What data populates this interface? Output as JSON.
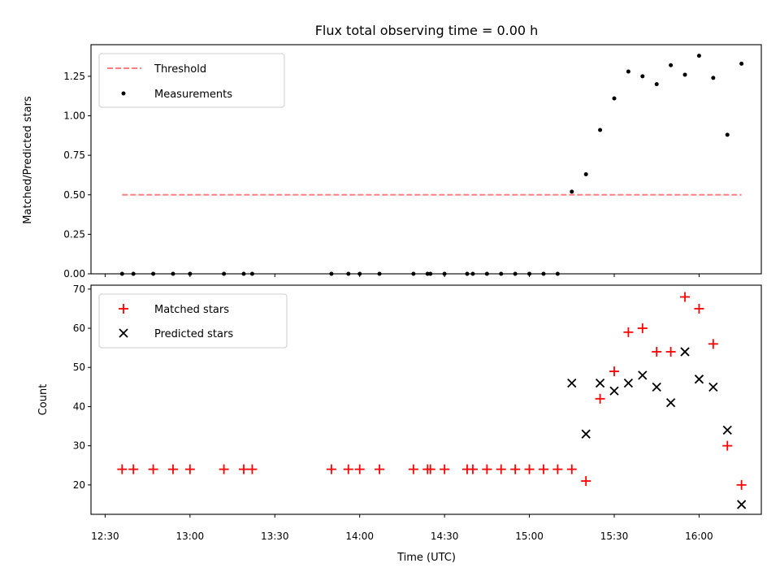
{
  "chart_data": [
    {
      "type": "scatter",
      "title": "Flux total observing time = 0.00 h",
      "ylabel": "Matched/Predicted stars",
      "ylim": [
        0,
        1.45
      ],
      "yticks": [
        "0.00",
        "0.25",
        "0.50",
        "0.75",
        "1.00",
        "1.25"
      ],
      "grid": false,
      "legend_position": "upper-left",
      "threshold": {
        "name": "Threshold",
        "color": "#ff8080",
        "style": "dashed",
        "value": 0.5,
        "x_start": "12:36",
        "x_end": "16:15"
      },
      "series": [
        {
          "name": "Measurements",
          "color": "#000000",
          "marker": "dot",
          "points": [
            [
              "12:36",
              0
            ],
            [
              "12:40",
              0
            ],
            [
              "12:47",
              0
            ],
            [
              "12:54",
              0
            ],
            [
              "13:00",
              0
            ],
            [
              "13:12",
              0
            ],
            [
              "13:19",
              0
            ],
            [
              "13:22",
              0
            ],
            [
              "13:50",
              0
            ],
            [
              "13:56",
              0
            ],
            [
              "14:00",
              0
            ],
            [
              "14:07",
              0
            ],
            [
              "14:19",
              0
            ],
            [
              "14:24",
              0
            ],
            [
              "14:25",
              0
            ],
            [
              "14:30",
              0
            ],
            [
              "14:38",
              0
            ],
            [
              "14:40",
              0
            ],
            [
              "14:45",
              0
            ],
            [
              "14:50",
              0
            ],
            [
              "14:55",
              0
            ],
            [
              "15:00",
              0
            ],
            [
              "15:05",
              0
            ],
            [
              "15:10",
              0
            ],
            [
              "15:15",
              0.52
            ],
            [
              "15:20",
              0.63
            ],
            [
              "15:25",
              0.91
            ],
            [
              "15:30",
              1.11
            ],
            [
              "15:35",
              1.28
            ],
            [
              "15:40",
              1.25
            ],
            [
              "15:45",
              1.2
            ],
            [
              "15:50",
              1.32
            ],
            [
              "15:55",
              1.26
            ],
            [
              "16:00",
              1.38
            ],
            [
              "16:05",
              1.24
            ],
            [
              "16:10",
              0.88
            ],
            [
              "16:15",
              1.33
            ]
          ]
        }
      ]
    },
    {
      "type": "scatter",
      "xlabel": "Time (UTC)",
      "ylabel": "Count",
      "ylim": [
        12.5,
        71
      ],
      "yticks": [
        "20",
        "30",
        "40",
        "50",
        "60",
        "70"
      ],
      "xticks": [
        "12:30",
        "13:00",
        "13:30",
        "14:00",
        "14:30",
        "15:00",
        "15:30",
        "16:00"
      ],
      "xlim": [
        "12:25",
        "16:22"
      ],
      "grid": false,
      "legend_position": "upper-left",
      "series": [
        {
          "name": "Matched stars",
          "color": "#ff0000",
          "marker": "plus",
          "points": [
            [
              "12:36",
              24
            ],
            [
              "12:40",
              24
            ],
            [
              "12:47",
              24
            ],
            [
              "12:54",
              24
            ],
            [
              "13:00",
              24
            ],
            [
              "13:12",
              24
            ],
            [
              "13:19",
              24
            ],
            [
              "13:22",
              24
            ],
            [
              "13:50",
              24
            ],
            [
              "13:56",
              24
            ],
            [
              "14:00",
              24
            ],
            [
              "14:07",
              24
            ],
            [
              "14:19",
              24
            ],
            [
              "14:24",
              24
            ],
            [
              "14:25",
              24
            ],
            [
              "14:30",
              24
            ],
            [
              "14:38",
              24
            ],
            [
              "14:40",
              24
            ],
            [
              "14:45",
              24
            ],
            [
              "14:50",
              24
            ],
            [
              "14:55",
              24
            ],
            [
              "15:00",
              24
            ],
            [
              "15:05",
              24
            ],
            [
              "15:10",
              24
            ],
            [
              "15:15",
              24
            ],
            [
              "15:20",
              21
            ],
            [
              "15:25",
              42
            ],
            [
              "15:30",
              49
            ],
            [
              "15:35",
              59
            ],
            [
              "15:40",
              60
            ],
            [
              "15:45",
              54
            ],
            [
              "15:50",
              54
            ],
            [
              "15:55",
              68
            ],
            [
              "16:00",
              65
            ],
            [
              "16:05",
              56
            ],
            [
              "16:10",
              30
            ],
            [
              "16:15",
              20
            ]
          ]
        },
        {
          "name": "Predicted stars",
          "color": "#000000",
          "marker": "x",
          "points": [
            [
              "15:15",
              46
            ],
            [
              "15:20",
              33
            ],
            [
              "15:25",
              46
            ],
            [
              "15:30",
              44
            ],
            [
              "15:35",
              46
            ],
            [
              "15:40",
              48
            ],
            [
              "15:45",
              45
            ],
            [
              "15:50",
              41
            ],
            [
              "15:55",
              54
            ],
            [
              "16:00",
              47
            ],
            [
              "16:05",
              45
            ],
            [
              "16:10",
              34
            ],
            [
              "16:15",
              15
            ]
          ]
        }
      ]
    }
  ]
}
